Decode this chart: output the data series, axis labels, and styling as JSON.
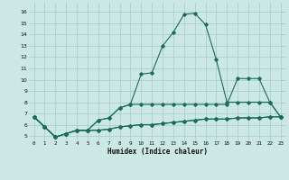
{
  "xlabel": "Humidex (Indice chaleur)",
  "bg_color": "#cce8e5",
  "grid_color": "#aacfcc",
  "line_color": "#1a6b5e",
  "xlim": [
    -0.5,
    23.5
  ],
  "ylim": [
    4.6,
    16.8
  ],
  "yticks": [
    5,
    6,
    7,
    8,
    9,
    10,
    11,
    12,
    13,
    14,
    15,
    16
  ],
  "xticks": [
    0,
    1,
    2,
    3,
    4,
    5,
    6,
    7,
    8,
    9,
    10,
    11,
    12,
    13,
    14,
    15,
    16,
    17,
    18,
    19,
    20,
    21,
    22,
    23
  ],
  "line1_x": [
    0,
    1,
    2,
    3,
    4,
    5,
    6,
    7,
    8,
    9,
    10,
    11,
    12,
    13,
    14,
    15,
    16,
    17,
    18,
    19,
    20,
    21,
    22,
    23
  ],
  "line1_y": [
    6.7,
    5.8,
    4.9,
    5.2,
    5.5,
    5.5,
    5.5,
    5.6,
    5.8,
    5.9,
    6.0,
    6.0,
    6.1,
    6.2,
    6.3,
    6.4,
    6.5,
    6.5,
    6.5,
    6.6,
    6.6,
    6.6,
    6.7,
    6.7
  ],
  "line2_x": [
    0,
    1,
    2,
    3,
    4,
    5,
    6,
    7,
    8,
    9,
    10,
    11,
    12,
    13,
    14,
    15,
    16,
    17,
    18,
    19,
    20,
    21,
    22,
    23
  ],
  "line2_y": [
    6.7,
    5.8,
    4.9,
    5.2,
    5.5,
    5.5,
    6.4,
    6.6,
    7.5,
    7.8,
    10.5,
    10.6,
    13.0,
    14.2,
    15.8,
    15.9,
    14.9,
    11.8,
    8.0,
    8.0,
    8.0,
    8.0,
    8.0,
    6.7
  ],
  "line3_x": [
    0,
    1,
    2,
    3,
    4,
    5,
    6,
    7,
    8,
    9,
    10,
    11,
    12,
    13,
    14,
    15,
    16,
    17,
    18,
    19,
    20,
    21,
    22,
    23
  ],
  "line3_y": [
    6.7,
    5.8,
    4.9,
    5.2,
    5.5,
    5.5,
    6.4,
    6.6,
    7.5,
    7.8,
    7.8,
    7.8,
    7.8,
    7.8,
    7.8,
    7.8,
    7.8,
    7.8,
    7.8,
    10.1,
    10.1,
    10.1,
    8.0,
    6.7
  ],
  "line4_x": [
    0,
    1,
    2,
    3,
    4,
    5,
    6,
    7,
    8,
    9,
    10,
    11,
    12,
    13,
    14,
    15,
    16,
    17,
    18,
    19,
    20,
    21,
    22,
    23
  ],
  "line4_y": [
    6.7,
    5.8,
    4.9,
    5.2,
    5.5,
    5.5,
    5.5,
    5.6,
    5.8,
    5.9,
    6.0,
    6.0,
    6.1,
    6.2,
    6.3,
    6.4,
    6.5,
    6.5,
    6.5,
    6.6,
    6.6,
    6.6,
    6.7,
    6.7
  ]
}
